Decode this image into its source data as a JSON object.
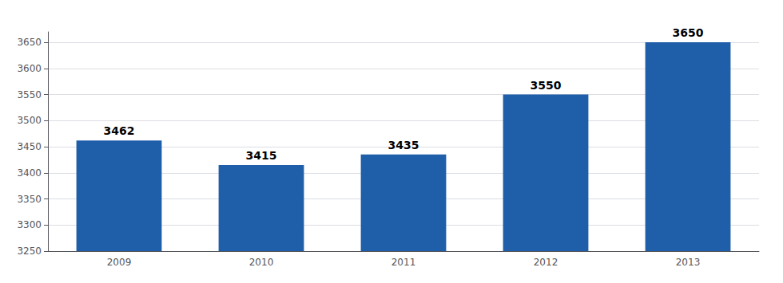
{
  "chart_data": {
    "type": "bar",
    "categories": [
      "2009",
      "2010",
      "2011",
      "2012",
      "2013"
    ],
    "values": [
      3462,
      3415,
      3435,
      3550,
      3650
    ],
    "color": "#1F5EA8",
    "ylim": [
      3250,
      3670
    ],
    "yticks": [
      3250,
      3300,
      3350,
      3400,
      3450,
      3500,
      3550,
      3600,
      3650
    ],
    "grid": true,
    "data_labels": true
  }
}
